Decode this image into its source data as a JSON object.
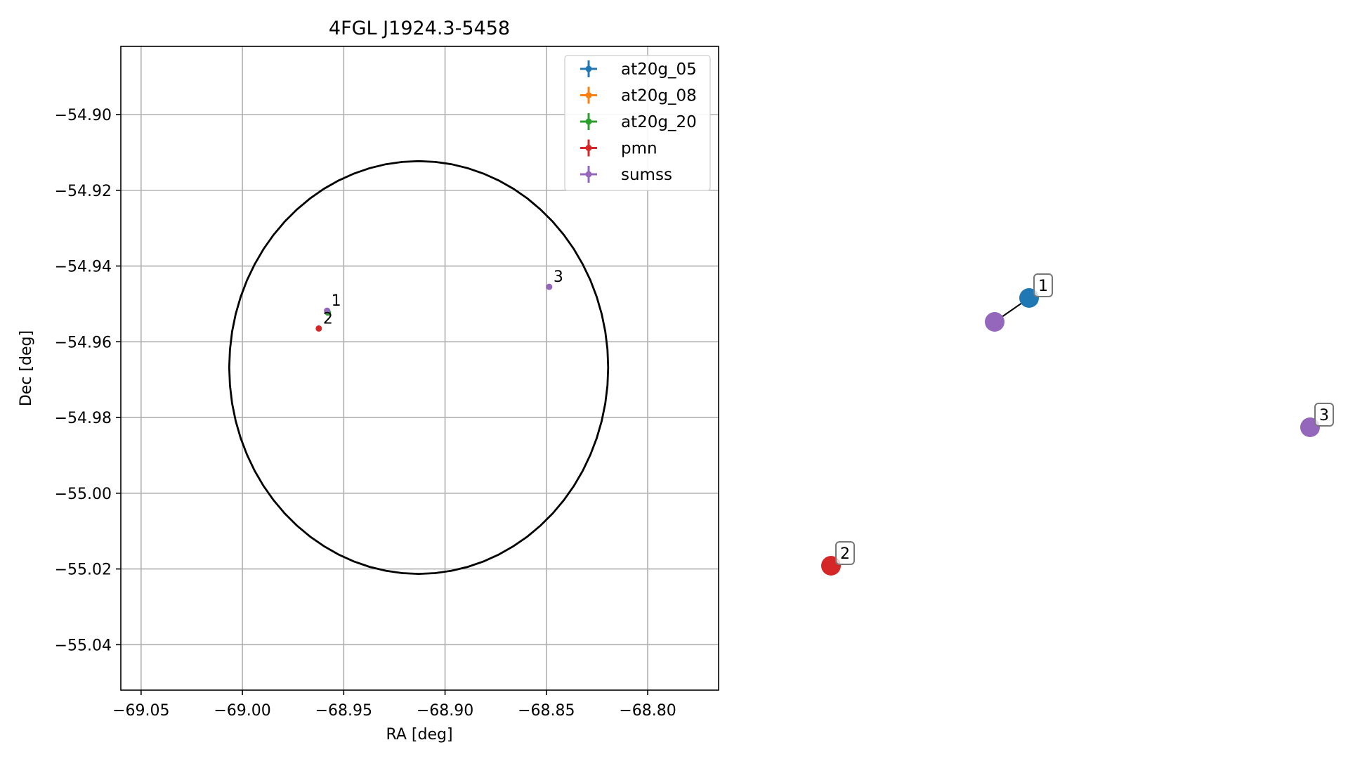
{
  "chart_data": [
    {
      "type": "scatter",
      "title": "4FGL J1924.3-5458",
      "xlabel": "RA [deg]",
      "ylabel": "Dec [deg]",
      "xlim": [
        -69.06,
        -68.765
      ],
      "ylim": [
        -55.052,
        -54.882
      ],
      "xticks": [
        -69.05,
        -69.0,
        -68.95,
        -68.9,
        -68.85,
        -68.8
      ],
      "xtick_labels": [
        "−69.05",
        "−69.00",
        "−68.95",
        "−68.90",
        "−68.85",
        "−68.80"
      ],
      "yticks": [
        -54.9,
        -54.92,
        -54.94,
        -54.96,
        -54.98,
        -55.0,
        -55.02,
        -55.04
      ],
      "ytick_labels": [
        "−54.90",
        "−54.92",
        "−54.94",
        "−54.96",
        "−54.98",
        "−55.00",
        "−55.02",
        "−55.04"
      ],
      "grid": true,
      "legend_position": "top-right",
      "series": [
        {
          "name": "at20g_05",
          "color": "#1f77b4",
          "points": [
            {
              "x": -68.958,
              "y": -54.9522
            }
          ]
        },
        {
          "name": "at20g_08",
          "color": "#ff7f0e",
          "points": [
            {
              "x": -68.958,
              "y": -54.9522
            }
          ]
        },
        {
          "name": "at20g_20",
          "color": "#2ca02c",
          "points": [
            {
              "x": -68.9578,
              "y": -54.9523
            }
          ]
        },
        {
          "name": "pmn",
          "color": "#d62728",
          "points": [
            {
              "x": -68.9623,
              "y": -54.9565
            }
          ]
        },
        {
          "name": "sumss",
          "color": "#9467bd",
          "points": [
            {
              "x": -68.9582,
              "y": -54.9518
            },
            {
              "x": -68.8486,
              "y": -54.9455
            }
          ]
        }
      ],
      "point_labels": [
        {
          "text": "1",
          "x": -68.9582,
          "y": -54.9518
        },
        {
          "text": "2",
          "x": -68.9623,
          "y": -54.9565
        },
        {
          "text": "3",
          "x": -68.8486,
          "y": -54.9455
        }
      ],
      "ellipse": {
        "center_x": -68.913,
        "center_y": -54.9668,
        "radius_x": 0.0935,
        "radius_y": 0.0545,
        "color": "#000000"
      }
    },
    {
      "type": "network",
      "nodes": [
        {
          "id": "sumss_node",
          "color": "#9467bd",
          "label": ""
        },
        {
          "id": "n1",
          "color": "#1f77b4",
          "label": "1"
        },
        {
          "id": "n2",
          "color": "#d62728",
          "label": "2"
        },
        {
          "id": "n3",
          "color": "#9467bd",
          "label": "3"
        }
      ],
      "edges": [
        {
          "from": "sumss_node",
          "to": "n1"
        }
      ]
    }
  ]
}
